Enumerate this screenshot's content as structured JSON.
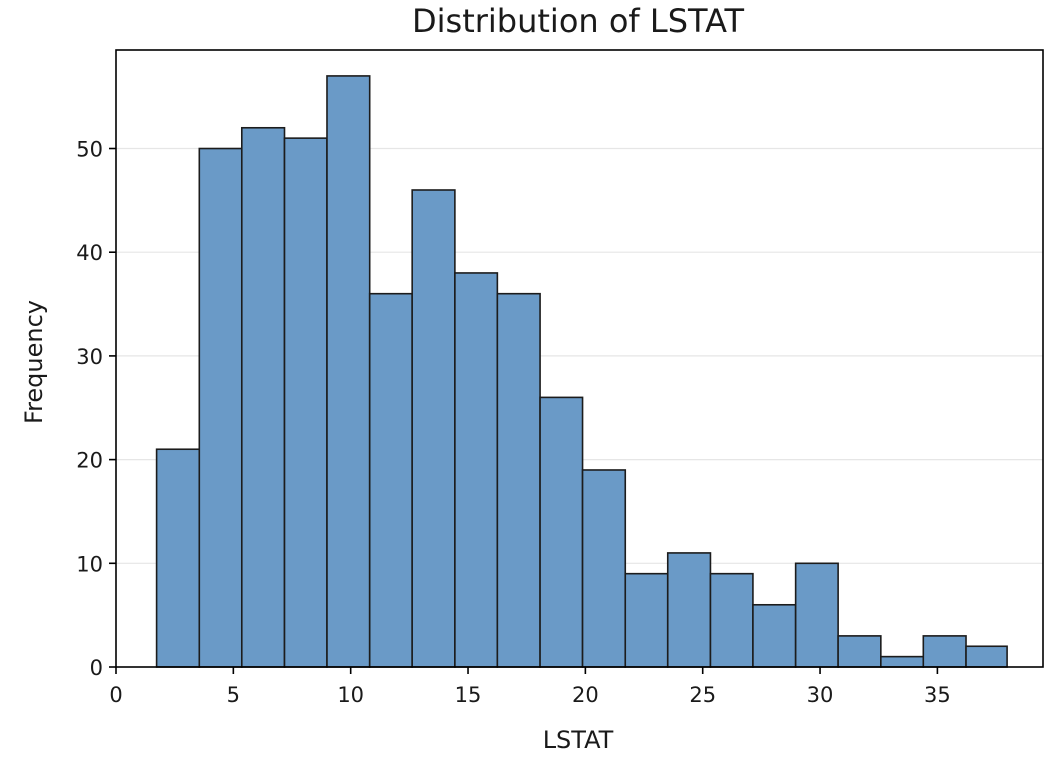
{
  "chart_data": {
    "type": "bar",
    "title": "Distribution of LSTAT",
    "xlabel": "LSTAT",
    "ylabel": "Frequency",
    "xlim": [
      0,
      39.5
    ],
    "ylim": [
      0,
      59.5
    ],
    "xticks": [
      0,
      5,
      10,
      15,
      20,
      25,
      30,
      35
    ],
    "yticks": [
      0,
      10,
      20,
      30,
      40,
      50
    ],
    "grid": "horizontal",
    "bar_color": "#6a9ac7",
    "edge_color": "#1c1c1c",
    "bins": [
      {
        "x0": 1.73,
        "x1": 3.55,
        "value": 21
      },
      {
        "x0": 3.55,
        "x1": 5.36,
        "value": 50
      },
      {
        "x0": 5.36,
        "x1": 7.18,
        "value": 52
      },
      {
        "x0": 7.18,
        "x1": 8.99,
        "value": 51
      },
      {
        "x0": 8.99,
        "x1": 10.81,
        "value": 57
      },
      {
        "x0": 10.81,
        "x1": 12.62,
        "value": 36
      },
      {
        "x0": 12.62,
        "x1": 14.44,
        "value": 46
      },
      {
        "x0": 14.44,
        "x1": 16.25,
        "value": 38
      },
      {
        "x0": 16.25,
        "x1": 18.07,
        "value": 36
      },
      {
        "x0": 18.07,
        "x1": 19.88,
        "value": 26
      },
      {
        "x0": 19.88,
        "x1": 21.7,
        "value": 19
      },
      {
        "x0": 21.7,
        "x1": 23.51,
        "value": 9
      },
      {
        "x0": 23.51,
        "x1": 25.33,
        "value": 11
      },
      {
        "x0": 25.33,
        "x1": 27.14,
        "value": 9
      },
      {
        "x0": 27.14,
        "x1": 28.96,
        "value": 6
      },
      {
        "x0": 28.96,
        "x1": 30.77,
        "value": 10
      },
      {
        "x0": 30.77,
        "x1": 32.59,
        "value": 3
      },
      {
        "x0": 32.59,
        "x1": 34.4,
        "value": 1
      },
      {
        "x0": 34.4,
        "x1": 36.22,
        "value": 3
      },
      {
        "x0": 36.22,
        "x1": 37.97,
        "value": 2
      }
    ]
  }
}
